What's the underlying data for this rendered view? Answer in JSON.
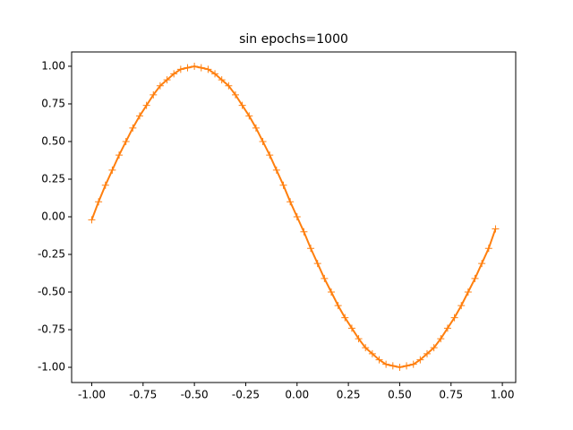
{
  "chart_data": {
    "type": "line",
    "title": "sin epochs=1000",
    "x": [
      -1,
      -0.9667,
      -0.9333,
      -0.9,
      -0.8667,
      -0.8333,
      -0.8,
      -0.7667,
      -0.7333,
      -0.7,
      -0.6667,
      -0.6333,
      -0.6,
      -0.5667,
      -0.5333,
      -0.5,
      -0.4667,
      -0.4333,
      -0.4,
      -0.3667,
      -0.3333,
      -0.3,
      -0.2667,
      -0.2333,
      -0.2,
      -0.1667,
      -0.1333,
      -0.1,
      -0.0667,
      -0.0333,
      0,
      0.0333,
      0.0667,
      0.1,
      0.1333,
      0.1667,
      0.2,
      0.2333,
      0.2667,
      0.3,
      0.3333,
      0.3667,
      0.4,
      0.4333,
      0.4667,
      0.5,
      0.5333,
      0.5667,
      0.6,
      0.6333,
      0.6667,
      0.7,
      0.7333,
      0.7667,
      0.8,
      0.8333,
      0.8667,
      0.9,
      0.9333,
      0.9667
    ],
    "series": [
      {
        "color": "#ff7f0e",
        "marker": "+",
        "values": [
          -0.02,
          0.1,
          0.21,
          0.31,
          0.41,
          0.5,
          0.59,
          0.67,
          0.74,
          0.81,
          0.87,
          0.91,
          0.95,
          0.98,
          0.99,
          1.0,
          0.99,
          0.98,
          0.95,
          0.91,
          0.87,
          0.81,
          0.74,
          0.67,
          0.59,
          0.5,
          0.41,
          0.31,
          0.21,
          0.1,
          0,
          -0.1,
          -0.21,
          -0.31,
          -0.41,
          -0.5,
          -0.59,
          -0.67,
          -0.74,
          -0.81,
          -0.87,
          -0.91,
          -0.95,
          -0.98,
          -0.99,
          -1.0,
          -0.99,
          -0.98,
          -0.95,
          -0.91,
          -0.87,
          -0.81,
          -0.74,
          -0.67,
          -0.59,
          -0.5,
          -0.41,
          -0.31,
          -0.21,
          -0.08
        ]
      }
    ],
    "xlim": [
      -1.098,
      1.065
    ],
    "ylim": [
      -1.101,
      1.095
    ],
    "xticks": [
      {
        "value": -1,
        "label": "-1.00"
      },
      {
        "value": -0.75,
        "label": "-0.75"
      },
      {
        "value": -0.5,
        "label": "-0.50"
      },
      {
        "value": -0.25,
        "label": "-0.25"
      },
      {
        "value": 0,
        "label": "0.00"
      },
      {
        "value": 0.25,
        "label": "0.25"
      },
      {
        "value": 0.5,
        "label": "0.50"
      },
      {
        "value": 0.75,
        "label": "0.75"
      },
      {
        "value": 1,
        "label": "1.00"
      }
    ],
    "yticks": [
      {
        "value": -1,
        "label": "-1.00"
      },
      {
        "value": -0.75,
        "label": "-0.75"
      },
      {
        "value": -0.5,
        "label": "-0.50"
      },
      {
        "value": -0.25,
        "label": "-0.25"
      },
      {
        "value": 0,
        "label": "0.00"
      },
      {
        "value": 0.25,
        "label": "0.25"
      },
      {
        "value": 0.5,
        "label": "0.50"
      },
      {
        "value": 0.75,
        "label": "0.75"
      },
      {
        "value": 1,
        "label": "1.00"
      }
    ]
  }
}
